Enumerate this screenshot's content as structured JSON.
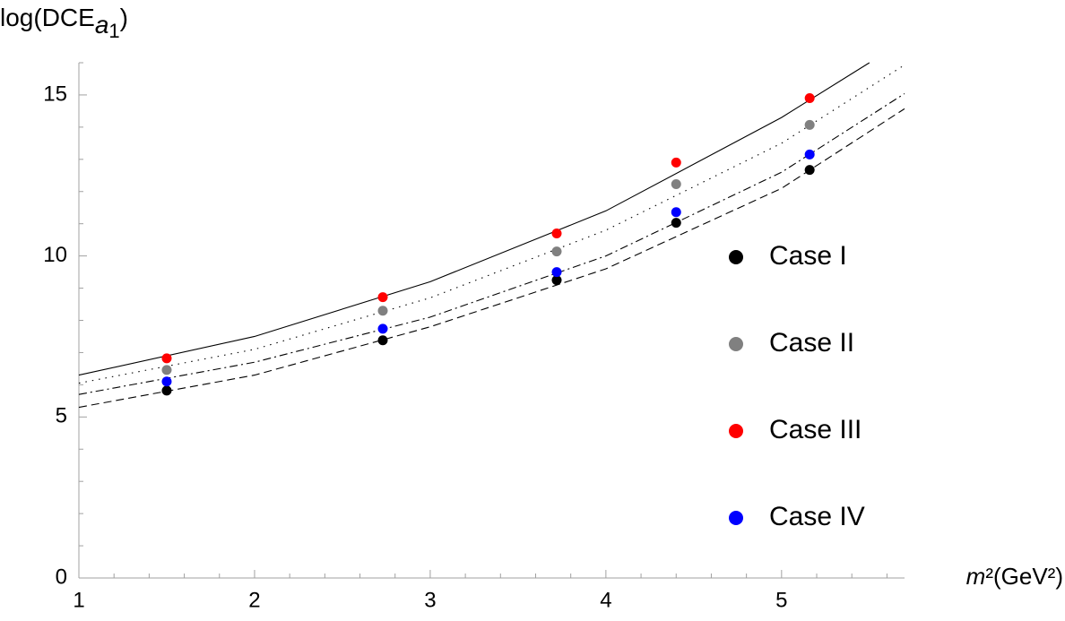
{
  "chart_data": {
    "type": "scatter",
    "ylabel": [
      "log(DCE",
      "a",
      "1",
      ")"
    ],
    "xlabel": [
      "m",
      "²(GeV²)"
    ],
    "xlim": [
      1,
      5.7
    ],
    "ylim": [
      0,
      16
    ],
    "xticks": [
      1,
      2,
      3,
      4,
      5
    ],
    "yticks": [
      0,
      5,
      10,
      15
    ],
    "xminorticks": [
      1.2,
      1.4,
      1.6,
      1.8,
      2.2,
      2.4,
      2.6,
      2.8,
      3.2,
      3.4,
      3.6,
      3.8,
      4.2,
      4.4,
      4.6,
      4.8,
      5.2,
      5.4,
      5.6
    ],
    "yminorticks": [
      1,
      2,
      3,
      4,
      6,
      7,
      8,
      9,
      11,
      12,
      13,
      14,
      16
    ],
    "legend": "right",
    "series": [
      {
        "name": "Case I",
        "color": "#000000",
        "x": [
          1.5,
          2.73,
          3.72,
          4.4,
          5.16
        ],
        "values": [
          5.82,
          7.38,
          9.25,
          11.03,
          12.67
        ],
        "fit": {
          "dash": "9 5",
          "x": [
            1,
            2,
            3,
            4,
            5,
            5.7
          ],
          "values": [
            5.3,
            6.3,
            7.8,
            9.6,
            12.1,
            14.57
          ]
        }
      },
      {
        "name": "Case II",
        "color": "#808080",
        "x": [
          1.5,
          2.73,
          3.72,
          4.4,
          5.16
        ],
        "values": [
          6.46,
          8.3,
          10.14,
          12.23,
          14.07
        ],
        "fit": {
          "dash": "1.5 6",
          "x": [
            1,
            2,
            3,
            4,
            5,
            5.7
          ],
          "values": [
            6.05,
            7.1,
            8.7,
            10.8,
            13.5,
            15.93
          ]
        }
      },
      {
        "name": "Case III",
        "color": "#ff0000",
        "x": [
          1.5,
          2.73,
          3.72,
          4.4,
          5.16
        ],
        "values": [
          6.82,
          8.72,
          10.7,
          12.9,
          14.9
        ],
        "fit": {
          "dash": "none",
          "x": [
            1,
            2,
            3,
            4,
            5,
            5.5
          ],
          "values": [
            6.3,
            7.5,
            9.2,
            11.4,
            14.3,
            16.0
          ]
        }
      },
      {
        "name": "Case IV",
        "color": "#0000ff",
        "x": [
          1.5,
          2.73,
          3.72,
          4.4,
          5.16
        ],
        "values": [
          6.1,
          7.74,
          9.5,
          11.36,
          13.15
        ],
        "fit": {
          "dash": "9 4 2 4",
          "x": [
            1,
            2,
            3,
            4,
            5,
            5.7
          ],
          "values": [
            5.7,
            6.7,
            8.1,
            10.0,
            12.6,
            15.04
          ]
        }
      }
    ]
  }
}
